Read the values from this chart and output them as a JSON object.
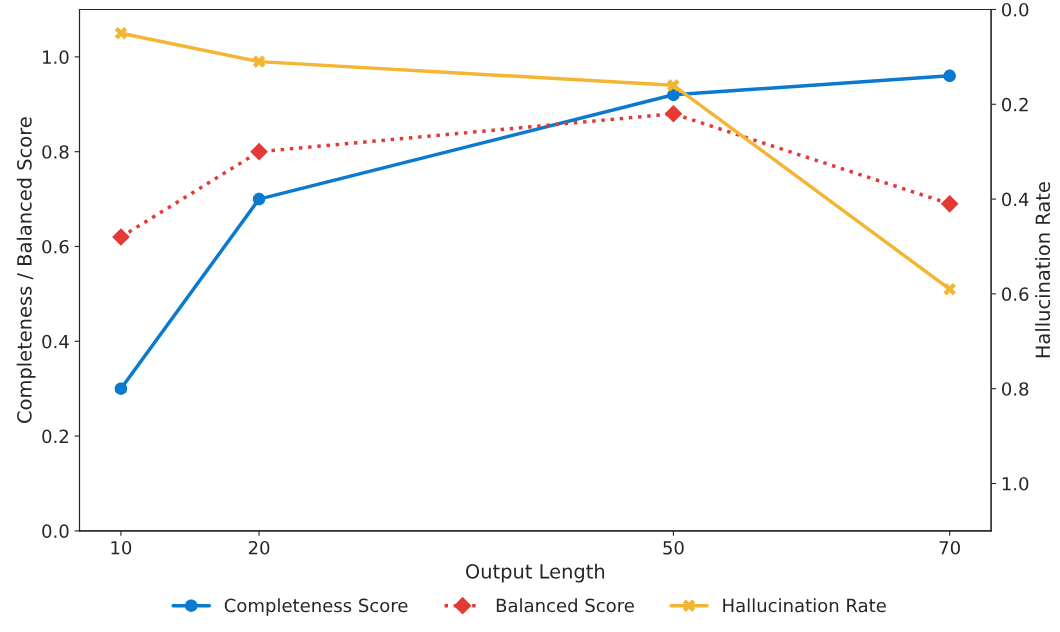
{
  "chart_data": {
    "type": "line",
    "xlabel": "Output Length",
    "ylabel": "Completeness / Balanced Score",
    "y2label": "Hallucination Rate",
    "x": [
      10,
      20,
      50,
      70
    ],
    "xlim": [
      7,
      73
    ],
    "xticks": [
      10,
      20,
      50,
      70
    ],
    "ylim": [
      0,
      1.1
    ],
    "yticks": [
      {
        "value": 0,
        "label": "0.0"
      },
      0.2,
      0.4,
      0.6,
      0.8,
      {
        "value": 1,
        "label": "1.0"
      }
    ],
    "y2lim": [
      1.1,
      0
    ],
    "y2ticks": [
      {
        "value": 0,
        "label": "0.0"
      },
      0.2,
      0.4,
      0.6,
      0.8,
      {
        "value": 1,
        "label": "1.0"
      }
    ],
    "legend": "bottom",
    "grid": false,
    "series": [
      {
        "name": "Completeness Score",
        "color": "#0a7ad0",
        "values": [
          0.3,
          0.7,
          0.92,
          0.96
        ],
        "marker": "circle",
        "line_style": "solid"
      },
      {
        "name": "Balanced Score",
        "color": "#e53935",
        "values": [
          0.62,
          0.8,
          0.88,
          0.69
        ],
        "marker": "diamond",
        "line_style": "dotted"
      },
      {
        "name": "Hallucination Rate",
        "color": "#f4b533",
        "values": [
          0.05,
          0.11,
          0.16,
          0.59
        ],
        "marker": "cross",
        "line_style": "solid",
        "axis": "y2"
      }
    ]
  }
}
